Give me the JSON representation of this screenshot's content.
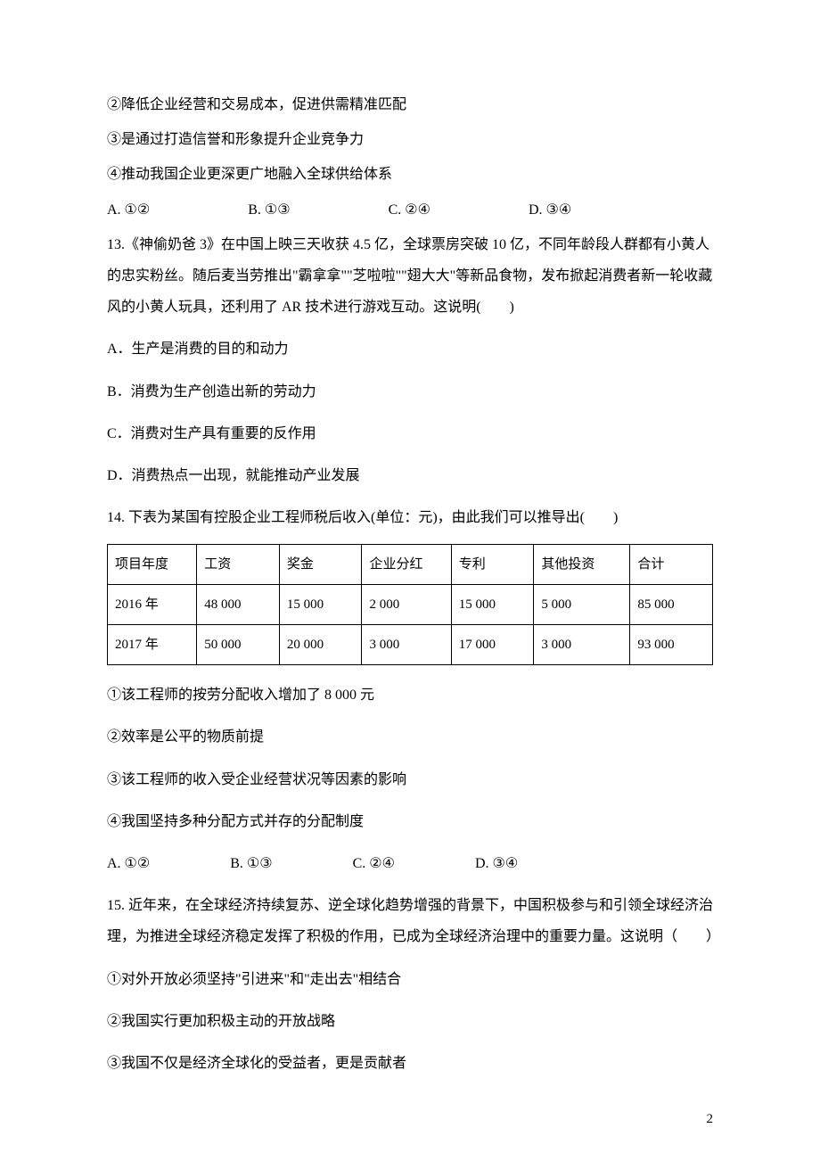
{
  "q12": {
    "line2": "②降低企业经营和交易成本，促进供需精准匹配",
    "line3": "③是通过打造信誉和形象提升企业竞争力",
    "line4": "④推动我国企业更深更广地融入全球供给体系",
    "optA": "A.  ①②",
    "optB": "B.  ①③",
    "optC": "C.  ②④",
    "optD": "D.  ③④"
  },
  "q13": {
    "stem": "13.《神偷奶爸 3》在中国上映三天收获 4.5 亿，全球票房突破 10 亿，不同年龄段人群都有小黄人的忠实粉丝。随后麦当劳推出\"霸拿拿\"\"芝啦啦\"\"翅大大\"等新品食物，发布掀起消费者新一轮收藏风的小黄人玩具，还利用了 AR 技术进行游戏互动。这说明(　　)",
    "optA": "A．生产是消费的目的和动力",
    "optB": "B．消费为生产创造出新的劳动力",
    "optC": "C．消费对生产具有重要的反作用",
    "optD": "D．消费热点一出现，就能推动产业发展"
  },
  "q14": {
    "stem": "14. 下表为某国有控股企业工程师税后收入(单位：元)，由此我们可以推导出(　　)",
    "table": {
      "columns": [
        "项目年度",
        "工资",
        "奖金",
        "企业分红",
        "专利",
        "其他投资",
        "合计"
      ],
      "rows": [
        [
          "2016 年",
          "48 000",
          "15 000",
          "2 000",
          "15 000",
          "5 000",
          "85 000"
        ],
        [
          "2017 年",
          "50 000",
          "20 000",
          "3 000",
          "17 000",
          "3 000",
          "93 000"
        ]
      ]
    },
    "line1": "①该工程师的按劳分配收入增加了 8 000 元",
    "line2": "②效率是公平的物质前提",
    "line3": "③该工程师的收入受企业经营状况等因素的影响",
    "line4": "④我国坚持多种分配方式并存的分配制度",
    "optA": "A. ①②",
    "optB": "B. ①③",
    "optC": "C. ②④",
    "optD": "D. ③④"
  },
  "q15": {
    "stem": "15. 近年来，在全球经济持续复苏、逆全球化趋势增强的背景下，中国积极参与和引领全球经济治理，为推进全球经济稳定发挥了积极的作用，已成为全球经济治理中的重要力量。这说明（　　）",
    "line1": "①对外开放必须坚持\"引进来\"和\"走出去\"相结合",
    "line2": "②我国实行更加积极主动的开放战略",
    "line3": "③我国不仅是经济全球化的受益者，更是贡献者"
  },
  "pageNumber": "2"
}
